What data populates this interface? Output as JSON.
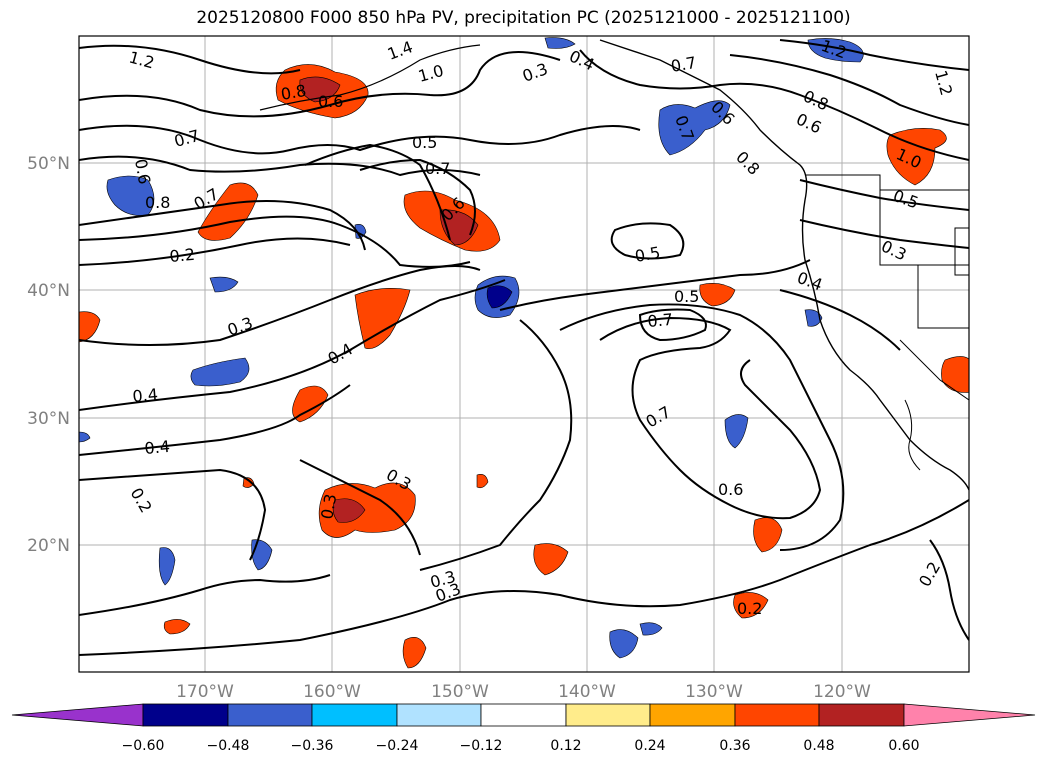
{
  "title": "2025120800 F000 850 hPa PV, precipitation PC (2025121000 - 2025121100)",
  "map": {
    "lon_ticks": [
      "170°W",
      "160°W",
      "150°W",
      "140°W",
      "130°W",
      "120°W"
    ],
    "lat_ticks": [
      "50°N",
      "40°N",
      "30°N",
      "20°N"
    ],
    "contour_labels": [
      "1.2",
      "1.4",
      "1.0",
      "0.8",
      "0.6",
      "0.3",
      "0.4",
      "0.7",
      "0.8",
      "0.6",
      "0.7",
      "0.5",
      "0.7",
      "1.2",
      "0.6",
      "1.2",
      "0.8",
      "0.6",
      "1.0",
      "0.5",
      "0.7",
      "0.8",
      "0.7",
      "0.6",
      "0.2",
      "0.5",
      "0.3",
      "0.4",
      "0.3",
      "0.4",
      "0.5",
      "0.7",
      "0.4",
      "0.4",
      "0.3",
      "0.7",
      "0.6",
      "0.3",
      "0.3",
      "0.2",
      "0.3",
      "0.2",
      "0.2"
    ],
    "land_color": "#000000",
    "grid_color": "#b0b0b0"
  },
  "colorbar": {
    "tick_labels": [
      "−0.60",
      "−0.48",
      "−0.36",
      "−0.24",
      "−0.12",
      "0.12",
      "0.24",
      "0.36",
      "0.48",
      "0.60"
    ],
    "colors": [
      "#9932cc",
      "#00008b",
      "#3a5fcd",
      "#00bfff",
      "#b0e2ff",
      "#ffffff",
      "#ffec8b",
      "#ffa500",
      "#ff4500",
      "#b22222",
      "#ff82ab"
    ]
  }
}
